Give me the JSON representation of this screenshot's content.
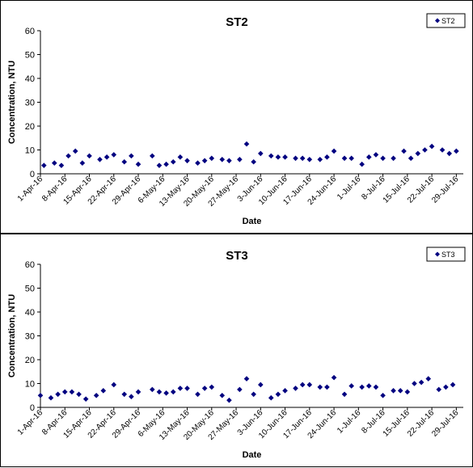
{
  "chart_data": [
    {
      "type": "scatter",
      "title": "ST2",
      "xlabel": "Date",
      "ylabel": "Concentration, NTU",
      "ylim": [
        0,
        60
      ],
      "yticks": [
        "0",
        "10",
        "20",
        "30",
        "40",
        "50",
        "60"
      ],
      "xlim": [
        "2016-04-01",
        "2016-07-31"
      ],
      "xticks": [
        "1-Apr-16",
        "8-Apr-16",
        "15-Apr-16",
        "22-Apr-16",
        "29-Apr-16",
        "6-May-16",
        "13-May-16",
        "20-May-16",
        "27-May-16",
        "3-Jun-16",
        "10-Jun-16",
        "17-Jun-16",
        "24-Jun-16",
        "1-Jul-16",
        "8-Jul-16",
        "15-Jul-16",
        "22-Jul-16",
        "29-Jul-16"
      ],
      "grid": false,
      "legend_position": "top-right",
      "marker_color": "#000080",
      "series": [
        {
          "name": "ST2",
          "x": [
            "2016-04-02",
            "2016-04-05",
            "2016-04-07",
            "2016-04-09",
            "2016-04-11",
            "2016-04-13",
            "2016-04-15",
            "2016-04-18",
            "2016-04-20",
            "2016-04-22",
            "2016-04-25",
            "2016-04-27",
            "2016-04-29",
            "2016-05-03",
            "2016-05-05",
            "2016-05-07",
            "2016-05-09",
            "2016-05-11",
            "2016-05-13",
            "2016-05-16",
            "2016-05-18",
            "2016-05-20",
            "2016-05-23",
            "2016-05-25",
            "2016-05-28",
            "2016-05-30",
            "2016-06-01",
            "2016-06-03",
            "2016-06-06",
            "2016-06-08",
            "2016-06-10",
            "2016-06-13",
            "2016-06-15",
            "2016-06-17",
            "2016-06-20",
            "2016-06-22",
            "2016-06-24",
            "2016-06-27",
            "2016-06-29",
            "2016-07-02",
            "2016-07-04",
            "2016-07-06",
            "2016-07-08",
            "2016-07-11",
            "2016-07-14",
            "2016-07-16",
            "2016-07-18",
            "2016-07-20",
            "2016-07-22",
            "2016-07-25",
            "2016-07-27",
            "2016-07-29"
          ],
          "values": [
            3.5,
            4.5,
            3.5,
            7.5,
            9.5,
            4.5,
            7.5,
            6,
            7,
            8,
            5,
            7.5,
            4,
            7.5,
            3.5,
            4,
            5,
            7,
            5.5,
            4.5,
            5.5,
            6.5,
            6,
            5.5,
            6,
            12.5,
            5,
            8.5,
            7.5,
            7,
            7,
            6.5,
            6.5,
            6,
            6,
            7,
            9.5,
            6.5,
            6.5,
            4,
            7,
            8,
            6.5,
            6.5,
            9.5,
            6.5,
            8.5,
            10,
            11.5,
            10,
            8.5,
            9.5
          ]
        }
      ]
    },
    {
      "type": "scatter",
      "title": "ST3",
      "xlabel": "Date",
      "ylabel": "Concentration, NTU",
      "ylim": [
        0,
        60
      ],
      "yticks": [
        "0",
        "10",
        "20",
        "30",
        "40",
        "50",
        "60"
      ],
      "xlim": [
        "2016-04-01",
        "2016-07-31"
      ],
      "xticks": [
        "1-Apr-16",
        "8-Apr-16",
        "15-Apr-16",
        "22-Apr-16",
        "29-Apr-16",
        "6-May-16",
        "13-May-16",
        "20-May-16",
        "27-May-16",
        "3-Jun-16",
        "10-Jun-16",
        "17-Jun-16",
        "24-Jun-16",
        "1-Jul-16",
        "8-Jul-16",
        "15-Jul-16",
        "22-Jul-16",
        "29-Jul-16"
      ],
      "grid": false,
      "legend_position": "top-right",
      "marker_color": "#000080",
      "series": [
        {
          "name": "ST3",
          "x": [
            "2016-04-01",
            "2016-04-04",
            "2016-04-06",
            "2016-04-08",
            "2016-04-10",
            "2016-04-12",
            "2016-04-14",
            "2016-04-17",
            "2016-04-19",
            "2016-04-22",
            "2016-04-25",
            "2016-04-27",
            "2016-04-29",
            "2016-05-03",
            "2016-05-05",
            "2016-05-07",
            "2016-05-09",
            "2016-05-11",
            "2016-05-13",
            "2016-05-16",
            "2016-05-18",
            "2016-05-20",
            "2016-05-23",
            "2016-05-25",
            "2016-05-28",
            "2016-05-30",
            "2016-06-01",
            "2016-06-03",
            "2016-06-06",
            "2016-06-08",
            "2016-06-10",
            "2016-06-13",
            "2016-06-15",
            "2016-06-17",
            "2016-06-20",
            "2016-06-22",
            "2016-06-24",
            "2016-06-27",
            "2016-06-29",
            "2016-07-02",
            "2016-07-04",
            "2016-07-06",
            "2016-07-08",
            "2016-07-11",
            "2016-07-13",
            "2016-07-15",
            "2016-07-17",
            "2016-07-19",
            "2016-07-21",
            "2016-07-24",
            "2016-07-26",
            "2016-07-28"
          ],
          "values": [
            5,
            4,
            5.5,
            6.5,
            6.5,
            5.5,
            3.5,
            5,
            7,
            9.5,
            5.5,
            4.5,
            6.5,
            7.5,
            6.5,
            6,
            6.5,
            8,
            8,
            5.5,
            8,
            8.5,
            5,
            3,
            7.5,
            12,
            5.5,
            9.5,
            4,
            5.5,
            7,
            8,
            9.5,
            9.5,
            8.5,
            8.5,
            12.5,
            5.5,
            9,
            8.5,
            9,
            8.5,
            5,
            7,
            7,
            6.5,
            10,
            10.5,
            12,
            7.5,
            8.5,
            9.5
          ]
        }
      ]
    }
  ]
}
